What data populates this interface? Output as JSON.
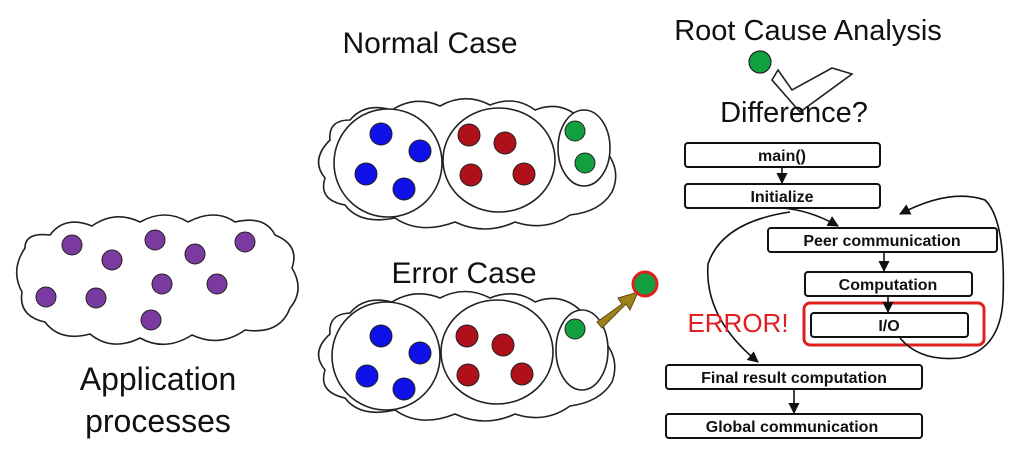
{
  "labels": {
    "normal_case": "Normal Case",
    "error_case": "Error Case",
    "app_line1": "Application",
    "app_line2": "processes",
    "root_cause": "Root Cause Analysis",
    "difference": "Difference?",
    "error": "ERROR!"
  },
  "flow": {
    "main": "main()",
    "initialize": "Initialize",
    "peer": "Peer communication",
    "computation": "Computation",
    "io": "I/O",
    "final": "Final result computation",
    "global": "Global communication"
  },
  "colors": {
    "purple": "#7a3aa0",
    "blue": "#1010e8",
    "red": "#b0101a",
    "green": "#10a040",
    "error_red": "#e02020",
    "arrow_gold": "#a08018"
  }
}
